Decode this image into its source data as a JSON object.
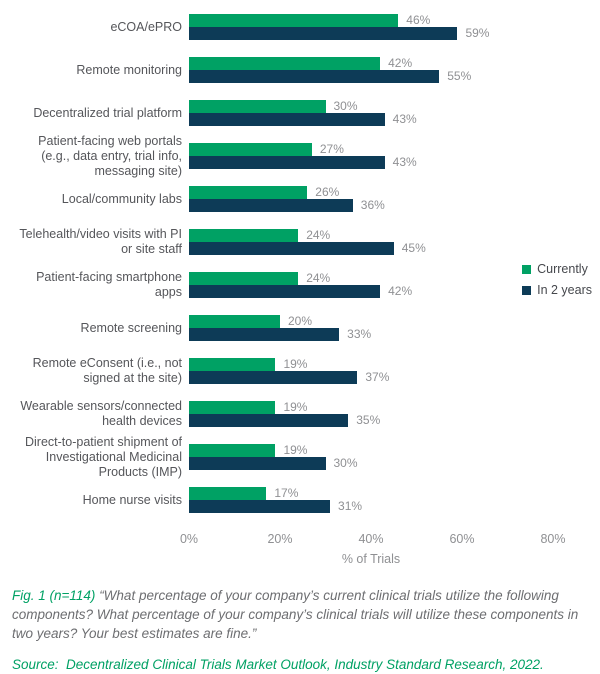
{
  "chart_data": {
    "type": "bar",
    "orientation": "horizontal",
    "title": "",
    "xlabel": "% of Trials",
    "xlim": [
      0,
      80
    ],
    "xticks": [
      "0%",
      "20%",
      "40%",
      "60%",
      "80%"
    ],
    "legend_position": "right",
    "grid": false,
    "categories": [
      "eCOA/ePRO",
      "Remote monitoring",
      "Decentralized trial platform",
      "Patient-facing web portals (e.g., data entry, trial info, messaging site)",
      "Local/community labs",
      "Telehealth/video visits with PI or site staff",
      "Patient-facing smartphone apps",
      "Remote screening",
      "Remote eConsent (i.e., not signed at the site)",
      "Wearable sensors/connected health devices",
      "Direct-to-patient shipment of Investigational Medicinal Products (IMP)",
      "Home nurse visits"
    ],
    "series": [
      {
        "name": "Currently",
        "color": "#00a164",
        "values": [
          46,
          42,
          30,
          27,
          26,
          24,
          24,
          20,
          19,
          19,
          19,
          17
        ],
        "labels": [
          "46%",
          "42%",
          "30%",
          "27%",
          "26%",
          "24%",
          "24%",
          "20%",
          "19%",
          "19%",
          "19%",
          "17%"
        ]
      },
      {
        "name": "In 2 years",
        "color": "#0d3b57",
        "values": [
          59,
          55,
          43,
          43,
          36,
          45,
          42,
          33,
          37,
          35,
          30,
          31
        ],
        "labels": [
          "59%",
          "55%",
          "43%",
          "43%",
          "36%",
          "45%",
          "42%",
          "33%",
          "37%",
          "35%",
          "30%",
          "31%"
        ]
      }
    ]
  },
  "legend": {
    "items": [
      {
        "label": "Currently",
        "color": "#00a164"
      },
      {
        "label": "In 2 years",
        "color": "#0d3b57"
      }
    ]
  },
  "caption": {
    "fig_label": "Fig. 1 (n=114)",
    "fig_text": "“What percentage of your company’s current clinical trials utilize the following components? What percentage of your company’s clinical trials will utilize these components in two years? Your best estimates are fine.”",
    "source": "Source:  Decentralized Clinical Trials Market Outlook, Industry Standard Research, 2022."
  },
  "colors": {
    "currently": "#00a164",
    "in_2_years": "#0d3b57",
    "value_label": "#8f9093",
    "category_label": "#55565a",
    "caption_text": "#6d6e71",
    "accent_green": "#00a164"
  }
}
